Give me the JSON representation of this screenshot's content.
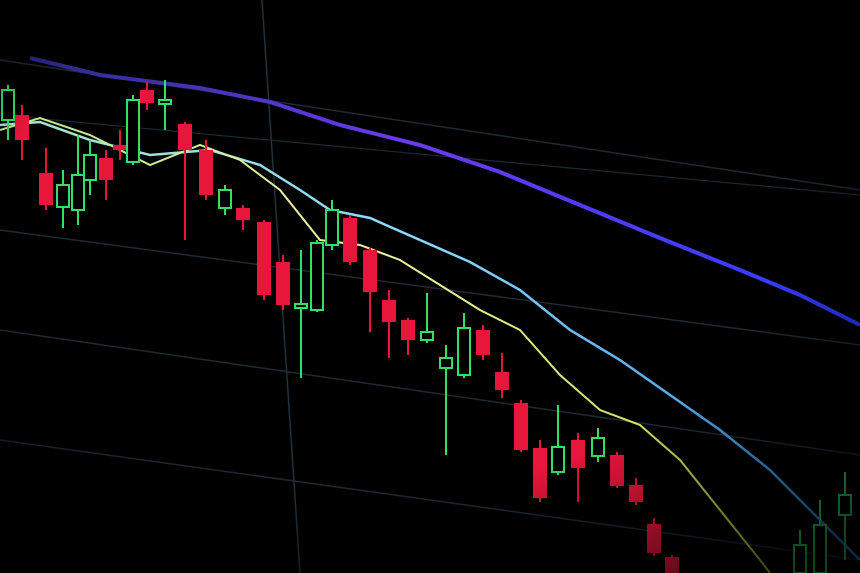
{
  "image": {
    "subject": "candlestick-price-chart-on-screen",
    "colors": {
      "background": "#000000",
      "bearish_candle": "#e8163a",
      "bullish_candle": "#2fe06a",
      "ma_long": "#4a3cf0",
      "ma_mid": "#7fd8ff",
      "ma_short": "#e8f08a",
      "grid": "#1c2a33"
    },
    "trend": "downtrend"
  }
}
